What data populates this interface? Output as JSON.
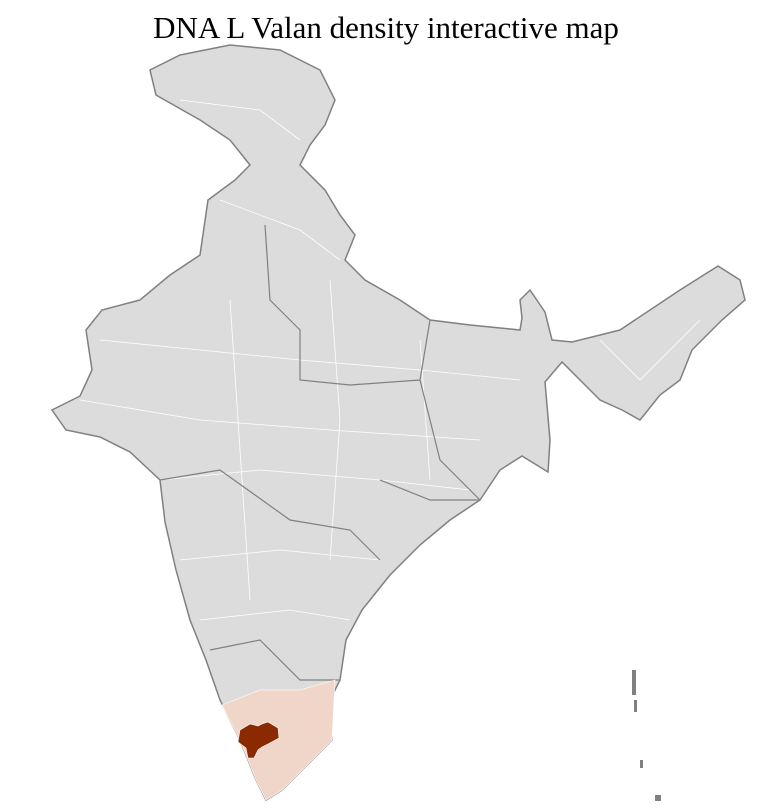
{
  "title": "DNA L Valan density interactive map",
  "map": {
    "colors": {
      "base_fill": "#dcdcdc",
      "district_border": "#ffffff",
      "state_border": "#808080",
      "low_density": "#f0d6c8",
      "high_density": "#8b2a00"
    },
    "regions": [
      {
        "name": "Kerala / Tamil Nadu (low density)",
        "level": "low"
      },
      {
        "name": "Central Kerala / western Tamil Nadu (high density)",
        "level": "high"
      }
    ]
  }
}
